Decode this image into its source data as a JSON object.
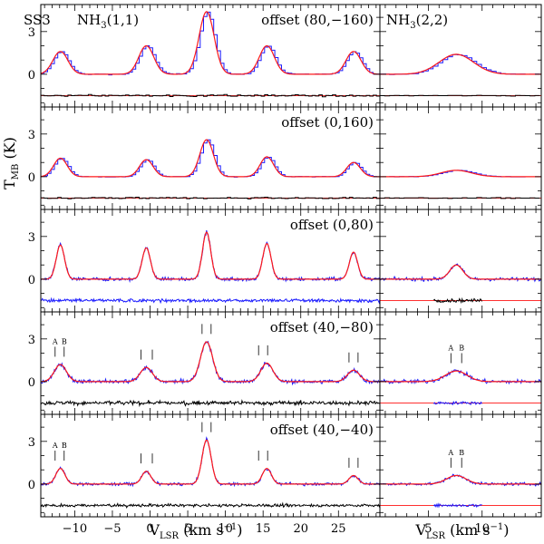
{
  "chart_data": {
    "type": "line",
    "source_label": "SS3",
    "y_axis_label": "T",
    "y_axis_label_sub": "MB",
    "y_axis_unit": " (K)",
    "x_axis_label": "V",
    "x_axis_label_sub": "LSR",
    "x_axis_unit": " (km s",
    "x_axis_unit_sup": "−1",
    "x_axis_unit_end": ")",
    "left_xlim": [
      -14.5,
      30.5
    ],
    "right_xlim": [
      0.5,
      15.5
    ],
    "left_xticks": [
      -10,
      -5,
      0,
      5,
      10,
      15,
      20,
      25
    ],
    "left_xtick_labels": [
      "−10",
      "−5",
      "0",
      "5",
      "10",
      "15",
      "20",
      "25"
    ],
    "right_xticks": [
      5,
      10
    ],
    "right_xtick_labels": [
      "5",
      "10"
    ],
    "yticks": [
      0,
      3
    ],
    "ytick_labels": [
      "0",
      "3"
    ],
    "line_11_prefix": "NH",
    "line_11_sub": "3",
    "line_11_suffix": "(1,1)",
    "line_22_prefix": "NH",
    "line_22_sub": "3",
    "line_22_suffix": "(2,2)",
    "hf_velocities": [
      -11.9,
      -0.5,
      7.5,
      15.5,
      27.0
    ],
    "hf22_velocity": 7.6,
    "panels": [
      {
        "label": "offset (80,−160)",
        "ylim": [
          -2.3,
          4.9
        ],
        "style": "step",
        "hf_amplitudes": [
          1.6,
          2.0,
          4.4,
          2.0,
          1.6
        ],
        "hf_width": 1.0,
        "hf22_amplitude": 1.4,
        "hf22_width": 1.6,
        "noise": 0.08,
        "residual_offset": -1.5,
        "right_residual": "red_step",
        "markers": false
      },
      {
        "label": "offset (0,160)",
        "ylim": [
          -2.3,
          4.9
        ],
        "style": "step",
        "hf_amplitudes": [
          1.3,
          1.2,
          2.6,
          1.4,
          1.0
        ],
        "hf_width": 0.9,
        "hf22_amplitude": 0.45,
        "hf22_width": 1.4,
        "noise": 0.06,
        "residual_offset": -1.5,
        "right_residual": "red_step",
        "markers": false
      },
      {
        "label": "offset (0,80)",
        "ylim": [
          -2.3,
          4.9
        ],
        "style": "noisy",
        "hf_amplitudes": [
          2.4,
          2.2,
          3.3,
          2.5,
          1.9
        ],
        "hf_width": 0.55,
        "hf22_amplitude": 1.0,
        "hf22_width": 0.6,
        "noise": 0.12,
        "residual_offset": -1.5,
        "right_residual": "black_segment",
        "markers": false
      },
      {
        "label": "offset (40,−80)",
        "ylim": [
          -2.3,
          4.9
        ],
        "style": "noisy",
        "hf_amplitudes": [
          1.2,
          1.0,
          2.8,
          1.3,
          0.8
        ],
        "hf_width": 0.8,
        "hf22_amplitude": 0.75,
        "hf22_width": 1.0,
        "noise": 0.14,
        "residual_offset": -1.5,
        "right_residual": "red_line_blue_segment",
        "markers": true
      },
      {
        "label": "offset (40,−40)",
        "ylim": [
          -2.3,
          4.9
        ],
        "style": "noisy",
        "hf_amplitudes": [
          1.1,
          0.9,
          3.1,
          1.1,
          0.6
        ],
        "hf_width": 0.6,
        "hf22_amplitude": 0.6,
        "hf22_width": 0.9,
        "noise": 0.1,
        "residual_offset": -1.5,
        "right_residual": "red_line_blue_segment",
        "markers": true
      }
    ],
    "marker_labels": [
      "A",
      "B"
    ],
    "left_marker_velocities": [
      [
        -12.6,
        -11.4
      ],
      [
        -1.2,
        0.3
      ],
      [
        6.9,
        8.1
      ],
      [
        14.4,
        15.6
      ],
      [
        26.4,
        27.6
      ]
    ],
    "right_marker_velocities": [
      7.1,
      8.1
    ]
  }
}
